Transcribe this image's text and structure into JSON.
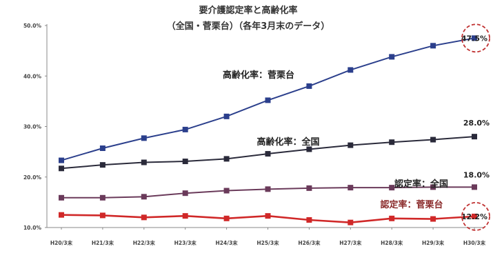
{
  "chart_data": {
    "type": "line",
    "title": "要介護認定率と高齢化率",
    "subtitle": "（全国・菅栗台）（各年3月末のデータ）",
    "categories": [
      "H20/3末",
      "H21/3末",
      "H22/3末",
      "H23/3末",
      "H24/3末",
      "H25/3末",
      "H26/3末",
      "H27/3末",
      "H28/3末",
      "H29/3末",
      "H30/3末"
    ],
    "y_ticks": [
      "10.0%",
      "20.0%",
      "30.0%",
      "40.0%",
      "50.0%"
    ],
    "ylim": [
      10,
      50
    ],
    "grid": false,
    "legend": "none",
    "series": [
      {
        "name": "高齢化率：菅栗台",
        "color": "#2b3f8c",
        "values": [
          23.3,
          25.7,
          27.7,
          29.4,
          32.0,
          35.2,
          38.0,
          41.2,
          43.8,
          46.0,
          47.5
        ],
        "end_label": "47.5%",
        "end_circled": true
      },
      {
        "name": "高齢化率：全国",
        "color": "#2a2a3a",
        "values": [
          21.7,
          22.4,
          22.9,
          23.1,
          23.6,
          24.6,
          25.5,
          26.3,
          26.9,
          27.4,
          28.0
        ],
        "end_label": "28.0%",
        "end_circled": false
      },
      {
        "name": "認定率：全国",
        "color": "#6a3a5a",
        "values": [
          15.9,
          15.9,
          16.1,
          16.8,
          17.3,
          17.6,
          17.8,
          17.9,
          17.9,
          18.0,
          18.0
        ],
        "end_label": "18.0%",
        "end_circled": false
      },
      {
        "name": "認定率：菅栗台",
        "color": "#d02828",
        "values": [
          12.5,
          12.4,
          12.0,
          12.3,
          11.8,
          12.3,
          11.5,
          11.0,
          11.8,
          11.7,
          12.2
        ],
        "end_label": "12.2%",
        "end_circled": true
      }
    ]
  }
}
